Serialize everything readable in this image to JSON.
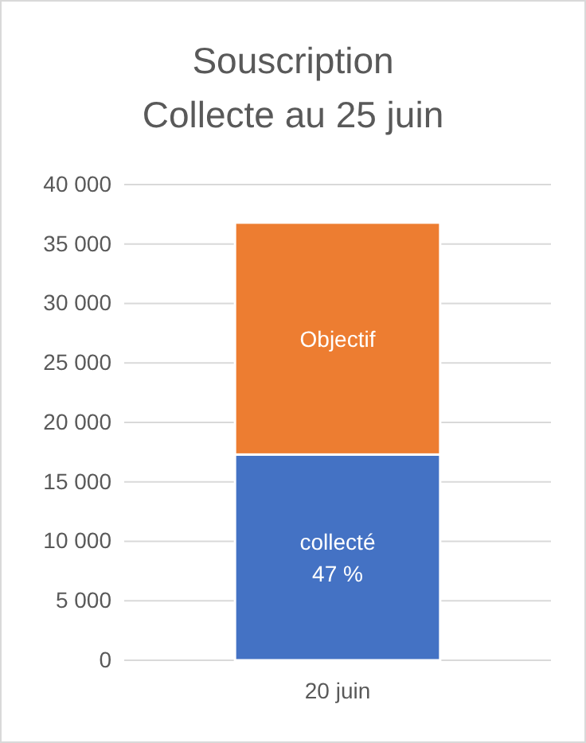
{
  "chart_data": {
    "type": "bar",
    "title": "Souscription\nCollecte au 25 juin",
    "categories": [
      "20 juin"
    ],
    "stacked": true,
    "series": [
      {
        "name": "collecté",
        "color": "#4472c4",
        "values": [
          17300
        ]
      },
      {
        "name": "Objectif",
        "color": "#ed7d31",
        "values": [
          19500
        ]
      }
    ],
    "ylim": [
      0,
      40000
    ],
    "yticks": [
      {
        "value": 0,
        "label": "0"
      },
      {
        "value": 5000,
        "label": "5 000"
      },
      {
        "value": 10000,
        "label": "10 000"
      },
      {
        "value": 15000,
        "label": "15 000"
      },
      {
        "value": 20000,
        "label": "20 000"
      },
      {
        "value": 25000,
        "label": "25 000"
      },
      {
        "value": 30000,
        "label": "30 000"
      },
      {
        "value": 35000,
        "label": "35 000"
      },
      {
        "value": 40000,
        "label": "40 000"
      }
    ],
    "grid": "y",
    "annotations": [
      "47 %"
    ]
  }
}
